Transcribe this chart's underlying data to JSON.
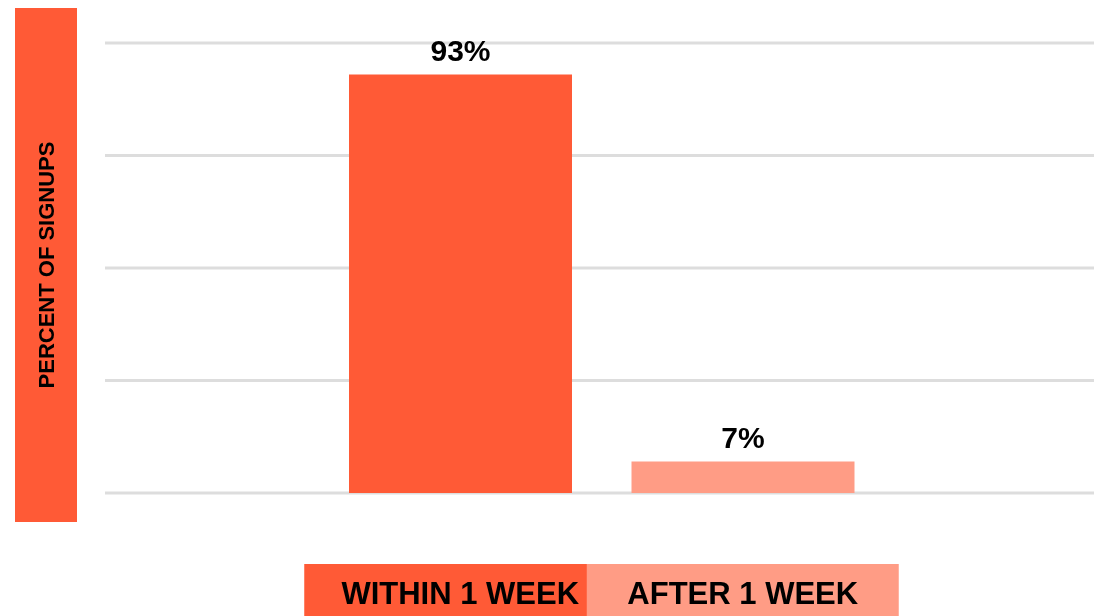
{
  "chart_data": {
    "type": "bar",
    "ylabel": "PERCENT OF SIGNUPS",
    "categories": [
      "WITHIN 1 WEEK",
      "AFTER 1 WEEK"
    ],
    "values": [
      93,
      7
    ],
    "colors": [
      "#ff5a36",
      "#ff9c85"
    ],
    "value_labels": [
      "93%",
      "7%"
    ],
    "grid": "y",
    "tick_labels": "x"
  }
}
